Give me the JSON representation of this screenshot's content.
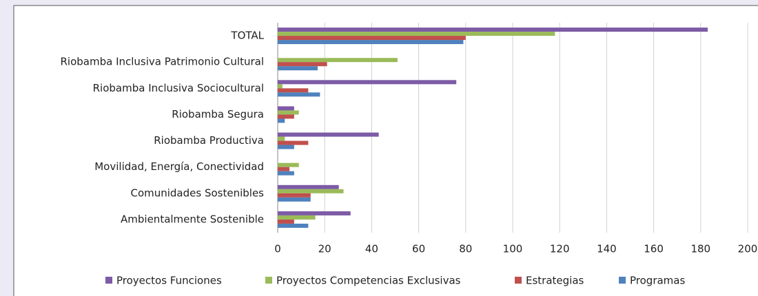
{
  "chart_data": {
    "type": "hbar",
    "categories": [
      "TOTAL",
      "Riobamba Inclusiva Patrimonio Cultural",
      "Riobamba Inclusiva Sociocultural",
      "Riobamba Segura",
      "Riobamba Productiva",
      "Movilidad, Energía, Conectividad",
      "Comunidades Sostenibles",
      "Ambientalmente Sostenible"
    ],
    "series": [
      {
        "name": "Proyectos Funciones",
        "color": "#7d5ba6",
        "values": [
          183,
          0,
          76,
          7,
          43,
          0,
          26,
          31
        ]
      },
      {
        "name": "Proyectos Competencias Exclusivas",
        "color": "#9bbb59",
        "values": [
          118,
          51,
          2,
          9,
          3,
          9,
          28,
          16
        ]
      },
      {
        "name": "Estrategias",
        "color": "#c0504d",
        "values": [
          80,
          21,
          13,
          7,
          13,
          5,
          14,
          7
        ]
      },
      {
        "name": "Programas",
        "color": "#4f81bd",
        "values": [
          79,
          17,
          18,
          3,
          7,
          7,
          14,
          13
        ]
      }
    ],
    "xlim": [
      0,
      200
    ],
    "xticks": [
      0,
      20,
      40,
      60,
      80,
      100,
      120,
      140,
      160,
      180,
      200
    ],
    "grid": true,
    "legend": "bottom"
  }
}
